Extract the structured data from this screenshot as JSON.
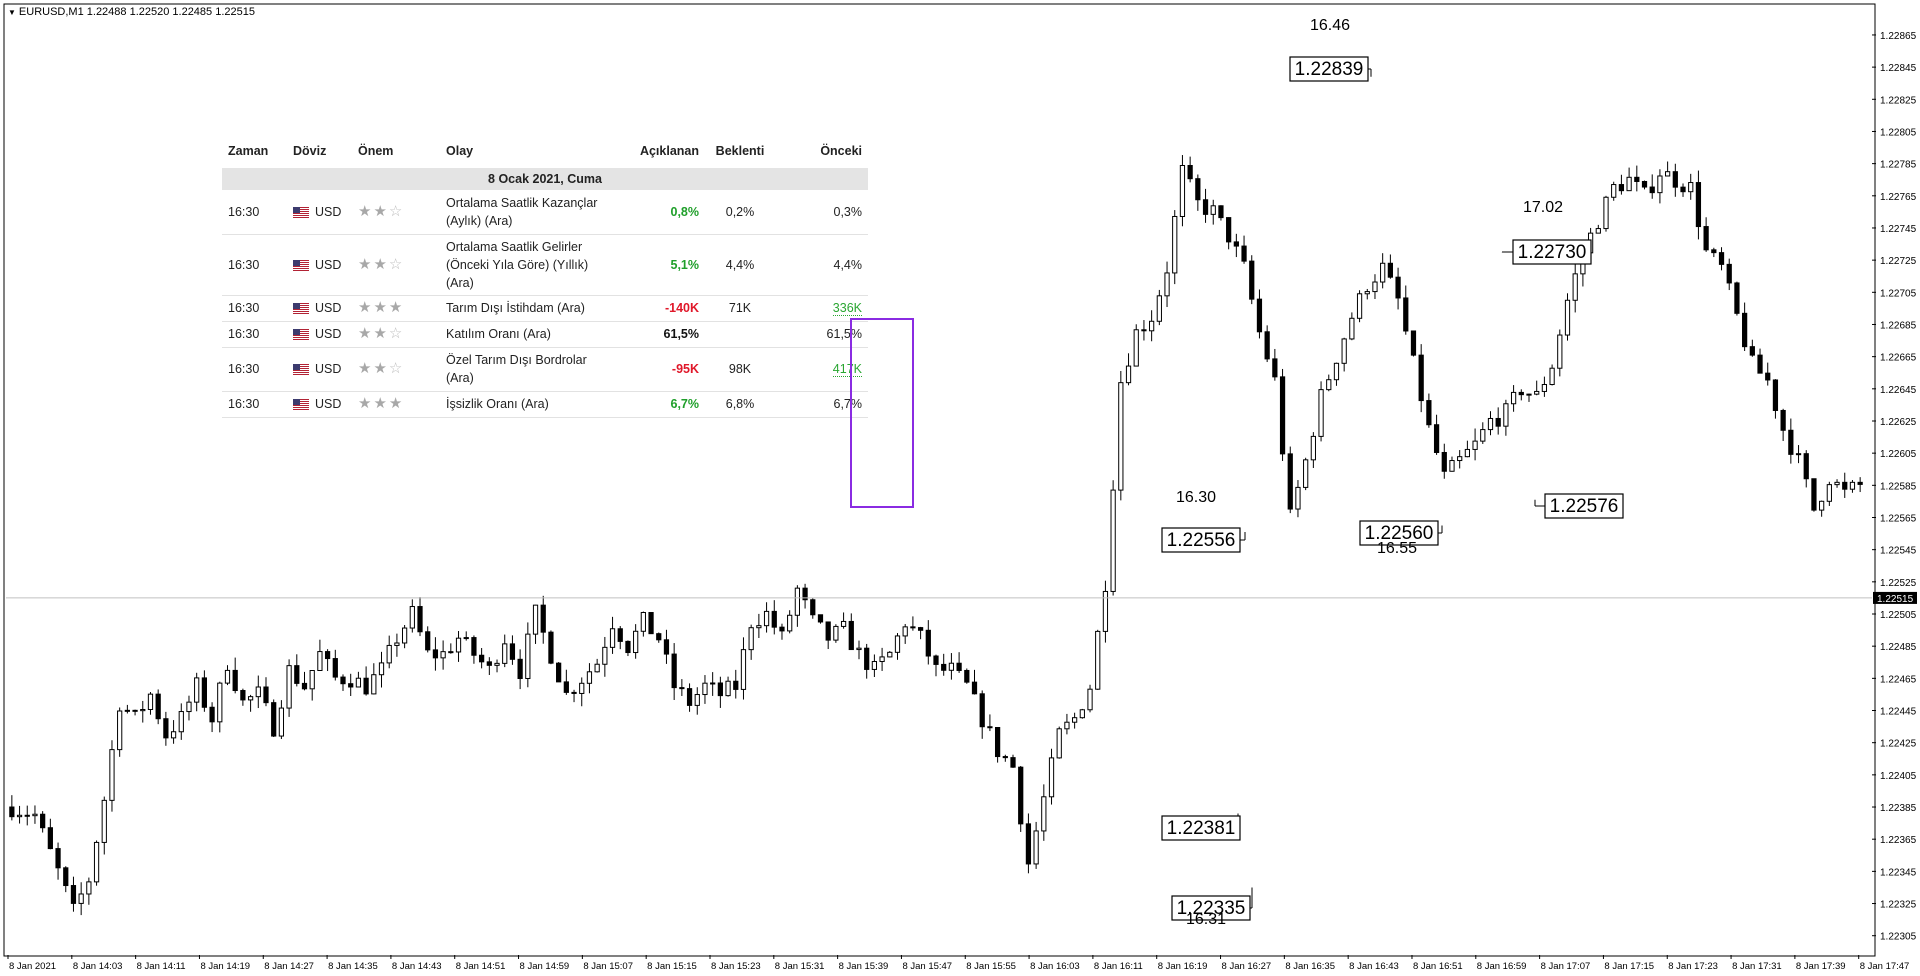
{
  "title": "EURUSD,M1  1.22488 1.22520 1.22485 1.22515",
  "news_table": {
    "headers": [
      "Zaman",
      "Döviz",
      "Önem",
      "Olay",
      "Açıklanan",
      "Beklenti",
      "Önceki"
    ],
    "date": "8 Ocak 2021, Cuma",
    "rows": [
      {
        "time": "16:30",
        "currency": "USD",
        "stars": 2,
        "event": "Ortalama Saatlik Kazançlar (Aylık) (Ara)",
        "actual": "0,8%",
        "actual_color": "green",
        "forecast": "0,2%",
        "previous": "0,3%"
      },
      {
        "time": "16:30",
        "currency": "USD",
        "stars": 2,
        "event": "Ortalama Saatlik Gelirler (Önceki Yıla Göre) (Yıllık) (Ara)",
        "actual": "5,1%",
        "actual_color": "green",
        "forecast": "4,4%",
        "previous": "4,4%"
      },
      {
        "time": "16:30",
        "currency": "USD",
        "stars": 3,
        "event": "Tarım Dışı İstihdam (Ara)",
        "actual": "-140K",
        "actual_color": "red",
        "forecast": "71K",
        "previous": "336K"
      },
      {
        "time": "16:30",
        "currency": "USD",
        "stars": 2,
        "event": "Katılım Oranı (Ara)",
        "actual": "61,5%",
        "actual_color": "black",
        "forecast": "",
        "previous": "61,5%"
      },
      {
        "time": "16:30",
        "currency": "USD",
        "stars": 2,
        "event": "Özel Tarım Dışı Bordrolar (Ara)",
        "actual": "-95K",
        "actual_color": "red",
        "forecast": "98K",
        "previous": "417K"
      },
      {
        "time": "16:30",
        "currency": "USD",
        "stars": 3,
        "event": "İşsizlik Oranı (Ara)",
        "actual": "6,7%",
        "actual_color": "green",
        "forecast": "6,8%",
        "previous": "6,7%"
      }
    ]
  },
  "chart_data": {
    "type": "candlestick",
    "symbol": "EURUSD",
    "timeframe": "M1",
    "ylim": [
      1.22293,
      1.22883
    ],
    "y_ticks": [
      "1.22865",
      "1.22845",
      "1.22825",
      "1.22805",
      "1.22785",
      "1.22765",
      "1.22745",
      "1.22725",
      "1.22705",
      "1.22685",
      "1.22665",
      "1.22645",
      "1.22625",
      "1.22605",
      "1.22585",
      "1.22565",
      "1.22545",
      "1.22525",
      "1.22505",
      "1.22485",
      "1.22465",
      "1.22445",
      "1.22425",
      "1.22405",
      "1.22385",
      "1.22365",
      "1.22345",
      "1.22325",
      "1.22305"
    ],
    "current_price": "1.22515",
    "x_ticks": [
      "8 Jan 2021",
      "8 Jan 14:03",
      "8 Jan 14:11",
      "8 Jan 14:19",
      "8 Jan 14:27",
      "8 Jan 14:35",
      "8 Jan 14:43",
      "8 Jan 14:51",
      "8 Jan 14:59",
      "8 Jan 15:07",
      "8 Jan 15:15",
      "8 Jan 15:23",
      "8 Jan 15:31",
      "8 Jan 15:39",
      "8 Jan 15:47",
      "8 Jan 15:55",
      "8 Jan 16:03",
      "8 Jan 16:11",
      "8 Jan 16:19",
      "8 Jan 16:27",
      "8 Jan 16:35",
      "8 Jan 16:43",
      "8 Jan 16:51",
      "8 Jan 16:59",
      "8 Jan 17:07",
      "8 Jan 17:15",
      "8 Jan 17:23",
      "8 Jan 17:31",
      "8 Jan 17:39",
      "8 Jan 17:47"
    ],
    "close_path": [
      [
        0,
        1.22385
      ],
      [
        3,
        1.2238
      ],
      [
        6,
        1.22345
      ],
      [
        8,
        1.2232
      ],
      [
        10,
        1.2234
      ],
      [
        12,
        1.2239
      ],
      [
        14,
        1.2245
      ],
      [
        16,
        1.2244
      ],
      [
        18,
        1.22455
      ],
      [
        20,
        1.2243
      ],
      [
        22,
        1.2244
      ],
      [
        24,
        1.2246
      ],
      [
        26,
        1.2244
      ],
      [
        28,
        1.22475
      ],
      [
        30,
        1.2245
      ],
      [
        32,
        1.22455
      ],
      [
        34,
        1.22435
      ],
      [
        36,
        1.2247
      ],
      [
        38,
        1.2246
      ],
      [
        40,
        1.2248
      ],
      [
        42,
        1.22465
      ],
      [
        44,
        1.22465
      ],
      [
        46,
        1.2246
      ],
      [
        48,
        1.2247
      ],
      [
        50,
        1.2249
      ],
      [
        52,
        1.22505
      ],
      [
        54,
        1.2248
      ],
      [
        56,
        1.2248
      ],
      [
        58,
        1.2249
      ],
      [
        60,
        1.2248
      ],
      [
        62,
        1.2247
      ],
      [
        64,
        1.2249
      ],
      [
        66,
        1.2247
      ],
      [
        68,
        1.22505
      ],
      [
        70,
        1.2248
      ],
      [
        72,
        1.22455
      ],
      [
        74,
        1.22465
      ],
      [
        76,
        1.22475
      ],
      [
        78,
        1.225
      ],
      [
        80,
        1.22485
      ],
      [
        82,
        1.225
      ],
      [
        84,
        1.2249
      ],
      [
        86,
        1.2246
      ],
      [
        88,
        1.2245
      ],
      [
        90,
        1.2246
      ],
      [
        92,
        1.22455
      ],
      [
        94,
        1.2246
      ],
      [
        96,
        1.225
      ],
      [
        98,
        1.22505
      ],
      [
        100,
        1.2249
      ],
      [
        102,
        1.2252
      ],
      [
        104,
        1.225
      ],
      [
        106,
        1.2249
      ],
      [
        108,
        1.22495
      ],
      [
        110,
        1.2248
      ],
      [
        112,
        1.2247
      ],
      [
        114,
        1.2248
      ],
      [
        116,
        1.225
      ],
      [
        118,
        1.2249
      ],
      [
        120,
        1.2247
      ],
      [
        122,
        1.2247
      ],
      [
        124,
        1.2246
      ],
      [
        126,
        1.2244
      ],
      [
        128,
        1.2242
      ],
      [
        130,
        1.2241
      ],
      [
        132,
        1.2235
      ],
      [
        134,
        1.2239
      ],
      [
        136,
        1.2243
      ],
      [
        138,
        1.2244
      ],
      [
        140,
        1.2246
      ],
      [
        142,
        1.22525
      ],
      [
        144,
        1.2265
      ],
      [
        146,
        1.2268
      ],
      [
        148,
        1.2269
      ],
      [
        150,
        1.2272
      ],
      [
        152,
        1.2278
      ],
      [
        154,
        1.2276
      ],
      [
        156,
        1.22755
      ],
      [
        158,
        1.2274
      ],
      [
        160,
        1.2272
      ],
      [
        162,
        1.2268
      ],
      [
        164,
        1.2265
      ],
      [
        166,
        1.22565
      ],
      [
        168,
        1.226
      ],
      [
        170,
        1.2264
      ],
      [
        172,
        1.22665
      ],
      [
        174,
        1.2269
      ],
      [
        176,
        1.2271
      ],
      [
        178,
        1.2272
      ],
      [
        180,
        1.227
      ],
      [
        182,
        1.2266
      ],
      [
        184,
        1.2262
      ],
      [
        186,
        1.2259
      ],
      [
        188,
        1.226
      ],
      [
        190,
        1.2261
      ],
      [
        192,
        1.22625
      ],
      [
        194,
        1.2263
      ],
      [
        196,
        1.22645
      ],
      [
        198,
        1.2264
      ],
      [
        200,
        1.2266
      ],
      [
        202,
        1.227
      ],
      [
        204,
        1.2273
      ],
      [
        206,
        1.2275
      ],
      [
        208,
        1.2277
      ],
      [
        210,
        1.22775
      ],
      [
        212,
        1.22765
      ],
      [
        214,
        1.2278
      ],
      [
        216,
        1.22775
      ],
      [
        218,
        1.2277
      ],
      [
        220,
        1.2273
      ],
      [
        222,
        1.2272
      ],
      [
        224,
        1.2269
      ],
      [
        226,
        1.2266
      ],
      [
        228,
        1.2265
      ],
      [
        230,
        1.2262
      ],
      [
        232,
        1.226
      ],
      [
        234,
        1.2257
      ],
      [
        236,
        1.2259
      ],
      [
        238,
        1.2258
      ],
      [
        240,
        1.22585
      ]
    ],
    "annotations": [
      {
        "price": "1.22839",
        "time": "16.46",
        "time_pos": "above"
      },
      {
        "price": "1.22730",
        "time": "17.02",
        "time_pos": "above"
      },
      {
        "price": "1.22556",
        "time": "16.30",
        "time_pos": "above"
      },
      {
        "price": "1.22560",
        "time": "16.55",
        "time_pos": "below"
      },
      {
        "price": "1.22576",
        "time": "",
        "time_pos": "none"
      },
      {
        "price": "1.22381",
        "time": "",
        "time_pos": "none"
      },
      {
        "price": "1.22335",
        "time": "16.31",
        "time_pos": "below"
      }
    ],
    "grid": false,
    "legend": "none"
  }
}
